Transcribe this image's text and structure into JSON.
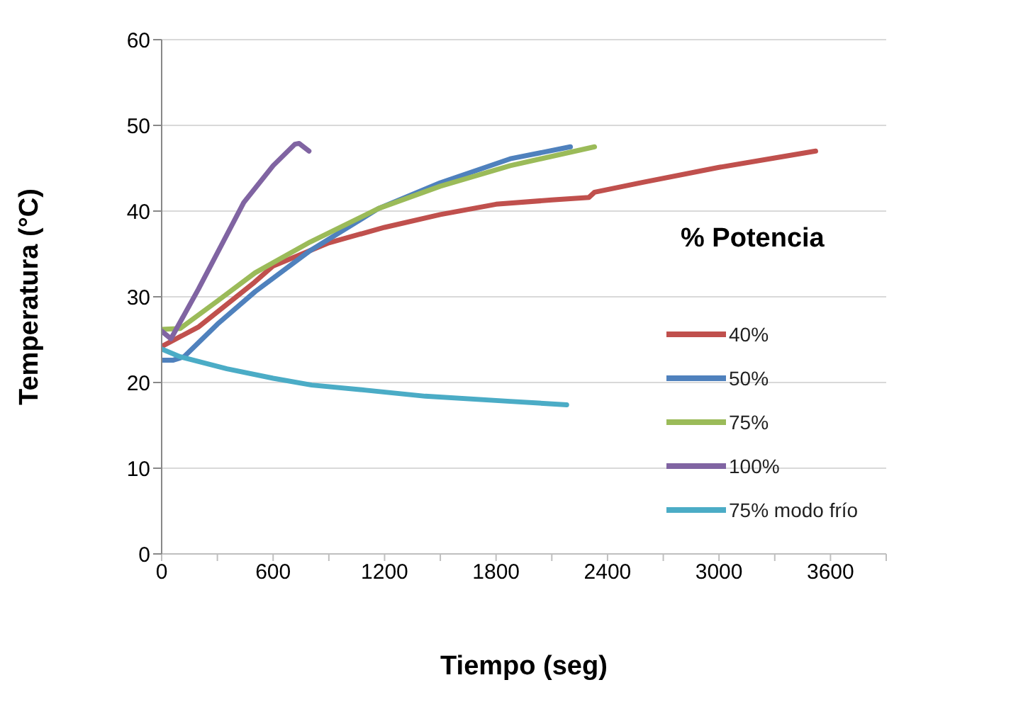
{
  "chart_data": {
    "type": "line",
    "xlabel": "Tiempo (seg)",
    "ylabel": "Temperatura (°C)",
    "legend_title": "% Potencia",
    "legend": "right",
    "grid": "y",
    "marker": "none",
    "line_style": "solid",
    "xlim": [
      0,
      3900
    ],
    "xticks": [
      0,
      {
        "value": 300,
        "label": null
      },
      600,
      {
        "value": 900,
        "label": null
      },
      1200,
      {
        "value": 1500,
        "label": null
      },
      1800,
      {
        "value": 2100,
        "label": null
      },
      2400,
      {
        "value": 2700,
        "label": null
      },
      3000,
      {
        "value": 3300,
        "label": null
      },
      3600,
      {
        "value": 3900,
        "label": null
      }
    ],
    "ylim": [
      0,
      60
    ],
    "yticks": [
      0,
      10,
      20,
      30,
      40,
      50,
      60
    ],
    "series": [
      {
        "name": "40%",
        "color": "#c0504d",
        "x": [
          0,
          200,
          500,
          600,
          900,
          1200,
          1500,
          1800,
          2100,
          2300,
          2330,
          2600,
          3000,
          3300,
          3520
        ],
        "values": [
          24.2,
          26.5,
          31.7,
          33.6,
          36.3,
          38.1,
          39.6,
          40.8,
          41.3,
          41.6,
          42.2,
          43.4,
          45.1,
          46.2,
          47
        ]
      },
      {
        "name": "50%",
        "color": "#4f81bd",
        "x": [
          0,
          60,
          120,
          300,
          503,
          800,
          1167,
          1500,
          1876,
          2200
        ],
        "values": [
          22.6,
          22.6,
          23,
          26.8,
          30.6,
          35.4,
          40.3,
          43.3,
          46.1,
          47.5
        ]
      },
      {
        "name": "75%",
        "color": "#9bbb59",
        "x": [
          0,
          100,
          300,
          503,
          800,
          1167,
          1500,
          1876,
          2330
        ],
        "values": [
          26.2,
          26.3,
          29.5,
          32.8,
          36.4,
          40.3,
          42.9,
          45.3,
          47.5
        ]
      },
      {
        "name": "100%",
        "color": "#8064a2",
        "x": [
          0,
          50,
          198,
          442,
          600,
          717,
          740,
          793
        ],
        "values": [
          26,
          25.1,
          30.9,
          41,
          45.3,
          47.8,
          47.9,
          47
        ]
      },
      {
        "name": "75% modo frío",
        "color": "#4bacc6",
        "x": [
          0,
          100,
          351,
          600,
          808,
          1100,
          1419,
          1876,
          2180
        ],
        "values": [
          23.9,
          23,
          21.6,
          20.5,
          19.7,
          19.1,
          18.4,
          17.8,
          17.4
        ]
      }
    ]
  }
}
